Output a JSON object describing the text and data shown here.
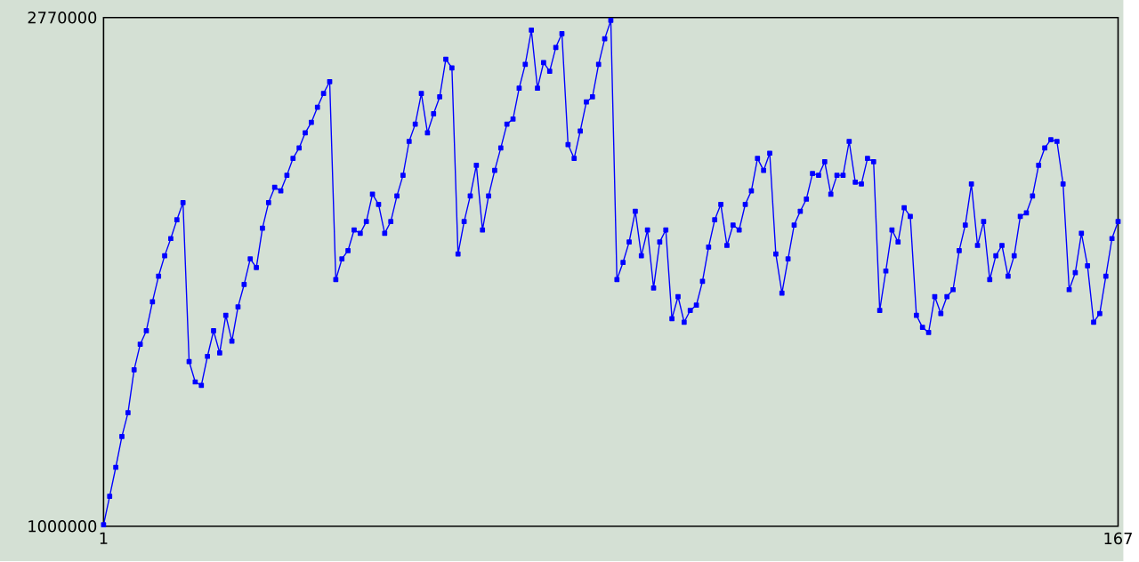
{
  "chart_data": {
    "type": "line",
    "x": [
      1,
      2,
      3,
      4,
      5,
      6,
      7,
      8,
      9,
      10,
      11,
      12,
      13,
      14,
      15,
      16,
      17,
      18,
      19,
      20,
      21,
      22,
      23,
      24,
      25,
      26,
      27,
      28,
      29,
      30,
      31,
      32,
      33,
      34,
      35,
      36,
      37,
      38,
      39,
      40,
      41,
      42,
      43,
      44,
      45,
      46,
      47,
      48,
      49,
      50,
      51,
      52,
      53,
      54,
      55,
      56,
      57,
      58,
      59,
      60,
      61,
      62,
      63,
      64,
      65,
      66,
      67,
      68,
      69,
      70,
      71,
      72,
      73,
      74,
      75,
      76,
      77,
      78,
      79,
      80,
      81,
      82,
      83,
      84,
      85,
      86,
      87,
      88,
      89,
      90,
      91,
      92,
      93,
      94,
      95,
      96,
      97,
      98,
      99,
      100,
      101,
      102,
      103,
      104,
      105,
      106,
      107,
      108,
      109,
      110,
      111,
      112,
      113,
      114,
      115,
      116,
      117,
      118,
      119,
      120,
      121,
      122,
      123,
      124,
      125,
      126,
      127,
      128,
      129,
      130,
      131,
      132,
      133,
      134,
      135,
      136,
      137,
      138,
      139,
      140,
      141,
      142,
      143,
      144,
      145,
      146,
      147,
      148,
      149,
      150,
      151,
      152,
      153,
      154,
      155,
      156,
      157,
      158,
      159,
      160,
      161,
      162,
      163,
      164,
      165,
      166,
      167
    ],
    "series": [
      {
        "color": "#0000ff",
        "values": [
          1005000,
          1104000,
          1205000,
          1312000,
          1395000,
          1544000,
          1633000,
          1680000,
          1781000,
          1870000,
          1941000,
          2001000,
          2066000,
          2126000,
          1573000,
          1502000,
          1490000,
          1591000,
          1680000,
          1603000,
          1734000,
          1644000,
          1763000,
          1841000,
          1930000,
          1900000,
          2037000,
          2126000,
          2179000,
          2167000,
          2221000,
          2280000,
          2316000,
          2369000,
          2405000,
          2458000,
          2506000,
          2547000,
          1858000,
          1930000,
          1959000,
          2031000,
          2019000,
          2060000,
          2155000,
          2120000,
          2019000,
          2060000,
          2149000,
          2221000,
          2339000,
          2399000,
          2506000,
          2369000,
          2435000,
          2494000,
          2625000,
          2595000,
          1947000,
          2060000,
          2149000,
          2256000,
          2031000,
          2149000,
          2238000,
          2316000,
          2399000,
          2417000,
          2524000,
          2607000,
          2726000,
          2524000,
          2613000,
          2583000,
          2666000,
          2714000,
          2328000,
          2280000,
          2375000,
          2476000,
          2494000,
          2607000,
          2696000,
          2760000,
          1858000,
          1918000,
          1989000,
          2096000,
          1941000,
          2031000,
          1829000,
          1989000,
          2031000,
          1722000,
          1799000,
          1710000,
          1751000,
          1769000,
          1852000,
          1971000,
          2066000,
          2120000,
          1977000,
          2048000,
          2031000,
          2120000,
          2167000,
          2280000,
          2238000,
          2298000,
          1947000,
          1811000,
          1930000,
          2048000,
          2096000,
          2138000,
          2227000,
          2221000,
          2268000,
          2155000,
          2221000,
          2221000,
          2339000,
          2197000,
          2191000,
          2280000,
          2268000,
          1751000,
          1888000,
          2031000,
          1989000,
          2108000,
          2078000,
          1734000,
          1692000,
          1674000,
          1799000,
          1740000,
          1799000,
          1823000,
          1959000,
          2048000,
          2191000,
          1977000,
          2060000,
          1858000,
          1941000,
          1977000,
          1870000,
          1941000,
          2078000,
          2090000,
          2149000,
          2256000,
          2316000,
          2345000,
          2339000,
          2191000,
          1823000,
          1882000,
          2019000,
          1906000,
          1710000,
          1740000,
          1870000,
          2001000,
          2060000
        ]
      }
    ],
    "xlim": [
      1,
      167
    ],
    "xticks": [
      1,
      167
    ],
    "ylim": [
      1000000,
      2770000
    ],
    "yticks": [
      1000000,
      2770000
    ],
    "marker": "square",
    "line_style": "solid"
  }
}
